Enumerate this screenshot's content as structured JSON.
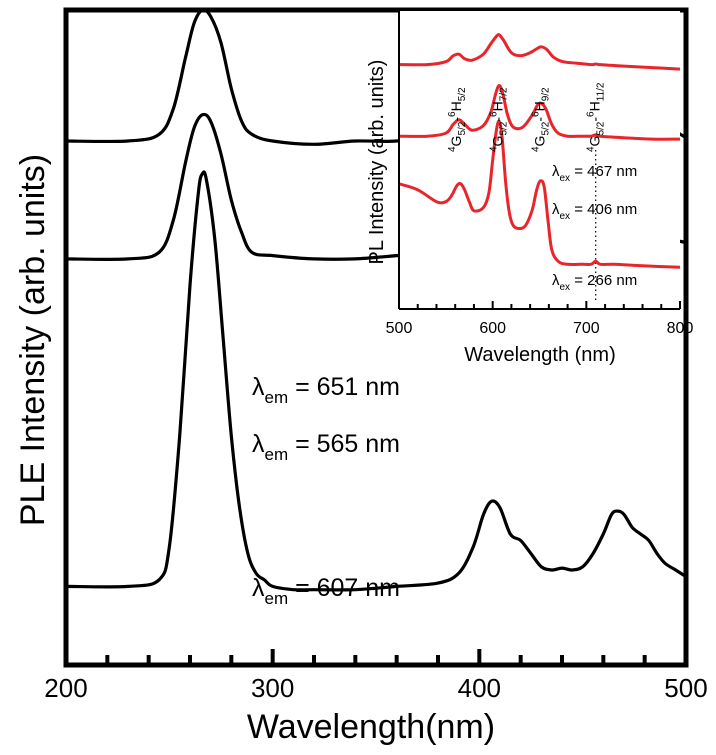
{
  "chart_data": [
    {
      "type": "line",
      "title": "",
      "xlabel": "Wavelength(nm)",
      "ylabel": "PLE Intensity (arb. units)",
      "xlim": [
        200,
        500
      ],
      "xticks": [
        200,
        300,
        400,
        500
      ],
      "xtick_labels": [
        "200",
        "300",
        "400",
        "500"
      ],
      "xminor_step": 20,
      "yticks_shown": false,
      "grid": false,
      "colors": {
        "line": "#000000"
      },
      "series": [
        {
          "name": "λem = 651 nm",
          "label_parts": {
            "sym": "λ",
            "sub": "em",
            "text": " = 651 nm"
          },
          "x": [
            200,
            230,
            245,
            252,
            258,
            262,
            266,
            270,
            275,
            280,
            285,
            290,
            300,
            320,
            340,
            360,
            380,
            390,
            397,
            402,
            406,
            410,
            415,
            420,
            425,
            430,
            440,
            450,
            458,
            463,
            467,
            472,
            478,
            485,
            492,
            500
          ],
          "y": [
            0.8,
            0.8,
            0.81,
            0.85,
            0.93,
            0.98,
            1.0,
            0.99,
            0.95,
            0.88,
            0.83,
            0.81,
            0.8,
            0.795,
            0.8,
            0.8,
            0.81,
            0.82,
            0.84,
            0.865,
            0.88,
            0.87,
            0.845,
            0.83,
            0.825,
            0.82,
            0.815,
            0.82,
            0.84,
            0.86,
            0.865,
            0.86,
            0.845,
            0.83,
            0.82,
            0.805
          ]
        },
        {
          "name": "λem = 565 nm",
          "label_parts": {
            "sym": "λ",
            "sub": "em",
            "text": " = 565 nm"
          },
          "x": [
            200,
            230,
            245,
            252,
            258,
            262,
            266,
            270,
            275,
            280,
            285,
            290,
            300,
            320,
            340,
            360,
            380,
            390,
            397,
            402,
            406,
            410,
            415,
            420,
            425,
            430,
            440,
            450,
            458,
            463,
            467,
            472,
            478,
            485,
            492,
            500
          ],
          "y": [
            0.62,
            0.62,
            0.63,
            0.68,
            0.77,
            0.82,
            0.84,
            0.83,
            0.78,
            0.71,
            0.66,
            0.63,
            0.625,
            0.62,
            0.62,
            0.625,
            0.63,
            0.64,
            0.66,
            0.685,
            0.7,
            0.69,
            0.67,
            0.655,
            0.65,
            0.648,
            0.648,
            0.65,
            0.665,
            0.68,
            0.685,
            0.675,
            0.665,
            0.655,
            0.65,
            0.645
          ]
        },
        {
          "name": "λem = 607 nm",
          "label_parts": {
            "sym": "λ",
            "sub": "em",
            "text": " = 607 nm"
          },
          "x": [
            200,
            230,
            245,
            250,
            255,
            260,
            264,
            266,
            268,
            272,
            276,
            280,
            284,
            288,
            292,
            296,
            300,
            310,
            320,
            340,
            360,
            380,
            390,
            397,
            402,
            406,
            410,
            415,
            420,
            425,
            430,
            435,
            440,
            445,
            450,
            455,
            460,
            464,
            467,
            470,
            474,
            478,
            482,
            486,
            490,
            495,
            500
          ],
          "y": [
            0.12,
            0.12,
            0.13,
            0.18,
            0.35,
            0.58,
            0.72,
            0.75,
            0.74,
            0.65,
            0.5,
            0.35,
            0.24,
            0.17,
            0.14,
            0.13,
            0.12,
            0.115,
            0.115,
            0.115,
            0.12,
            0.125,
            0.14,
            0.18,
            0.23,
            0.25,
            0.24,
            0.2,
            0.19,
            0.17,
            0.15,
            0.145,
            0.148,
            0.145,
            0.15,
            0.17,
            0.2,
            0.23,
            0.235,
            0.23,
            0.21,
            0.2,
            0.19,
            0.17,
            0.155,
            0.145,
            0.135
          ]
        }
      ]
    },
    {
      "type": "line",
      "title": "",
      "xlabel": "Wavelength (nm)",
      "ylabel": "PL Intensity (arb. units)",
      "xlim": [
        500,
        800
      ],
      "xticks": [
        500,
        600,
        700,
        800
      ],
      "xtick_labels": [
        "500",
        "600",
        "700",
        "800"
      ],
      "xminor_step": 20,
      "yticks_shown": false,
      "grid": false,
      "colors": {
        "line": "#e8252a",
        "marker_line": "#000000"
      },
      "marker_x": 710,
      "transitions": [
        {
          "x": 562,
          "upper": "4",
          "sym": "G",
          "sub1": "5/2",
          "sep": "-",
          "lower": "6",
          "sym2": "H",
          "sub2": "5/2"
        },
        {
          "x": 606,
          "upper": "4",
          "sym": "G",
          "sub1": "5/2",
          "sep": "-",
          "lower": "6",
          "sym2": "H",
          "sub2": "7/2"
        },
        {
          "x": 651,
          "upper": "4",
          "sym": "G",
          "sub1": "5/2",
          "sep": "-",
          "lower": "6",
          "sym2": "H",
          "sub2": "9/2"
        },
        {
          "x": 710,
          "upper": "4",
          "sym": "G",
          "sub1": "5/2",
          "sep": "-",
          "lower": "6",
          "sym2": "H",
          "sub2": "11/2"
        }
      ],
      "series": [
        {
          "name": "λex = 467 nm",
          "label_parts": {
            "sym": "λ",
            "sub": "ex",
            "text": " = 467 nm"
          },
          "x": [
            500,
            530,
            550,
            558,
            564,
            570,
            578,
            590,
            598,
            604,
            607,
            612,
            620,
            630,
            640,
            648,
            652,
            658,
            665,
            675,
            690,
            705,
            710,
            715,
            740,
            770,
            800
          ],
          "y": [
            0.82,
            0.82,
            0.83,
            0.85,
            0.855,
            0.84,
            0.835,
            0.855,
            0.89,
            0.915,
            0.92,
            0.9,
            0.86,
            0.85,
            0.86,
            0.875,
            0.88,
            0.87,
            0.845,
            0.83,
            0.825,
            0.82,
            0.822,
            0.82,
            0.815,
            0.81,
            0.805
          ]
        },
        {
          "name": "λex = 406 nm",
          "label_parts": {
            "sym": "λ",
            "sub": "ex",
            "text": " = 406 nm"
          },
          "x": [
            500,
            530,
            550,
            558,
            564,
            570,
            578,
            590,
            598,
            603,
            607,
            611,
            616,
            622,
            632,
            642,
            648,
            652,
            657,
            663,
            670,
            680,
            695,
            705,
            710,
            715,
            740,
            770,
            800
          ],
          "y": [
            0.58,
            0.58,
            0.59,
            0.62,
            0.635,
            0.62,
            0.6,
            0.615,
            0.66,
            0.72,
            0.75,
            0.72,
            0.65,
            0.61,
            0.61,
            0.65,
            0.685,
            0.69,
            0.67,
            0.62,
            0.59,
            0.58,
            0.58,
            0.58,
            0.585,
            0.58,
            0.575,
            0.57,
            0.57
          ]
        },
        {
          "name": "λex = 266 nm",
          "label_parts": {
            "sym": "λ",
            "sub": "ex",
            "text": " = 266 nm"
          },
          "x": [
            500,
            520,
            540,
            550,
            556,
            562,
            566,
            570,
            575,
            580,
            590,
            596,
            600,
            604,
            607,
            610,
            614,
            618,
            622,
            628,
            635,
            642,
            647,
            651,
            655,
            659,
            663,
            670,
            680,
            695,
            705,
            710,
            715,
            730,
            760,
            800
          ],
          "y": [
            0.42,
            0.4,
            0.36,
            0.36,
            0.38,
            0.415,
            0.42,
            0.4,
            0.36,
            0.33,
            0.34,
            0.39,
            0.5,
            0.6,
            0.63,
            0.58,
            0.42,
            0.32,
            0.28,
            0.27,
            0.28,
            0.33,
            0.4,
            0.43,
            0.41,
            0.3,
            0.2,
            0.16,
            0.15,
            0.15,
            0.15,
            0.16,
            0.15,
            0.15,
            0.145,
            0.14
          ]
        }
      ]
    }
  ]
}
